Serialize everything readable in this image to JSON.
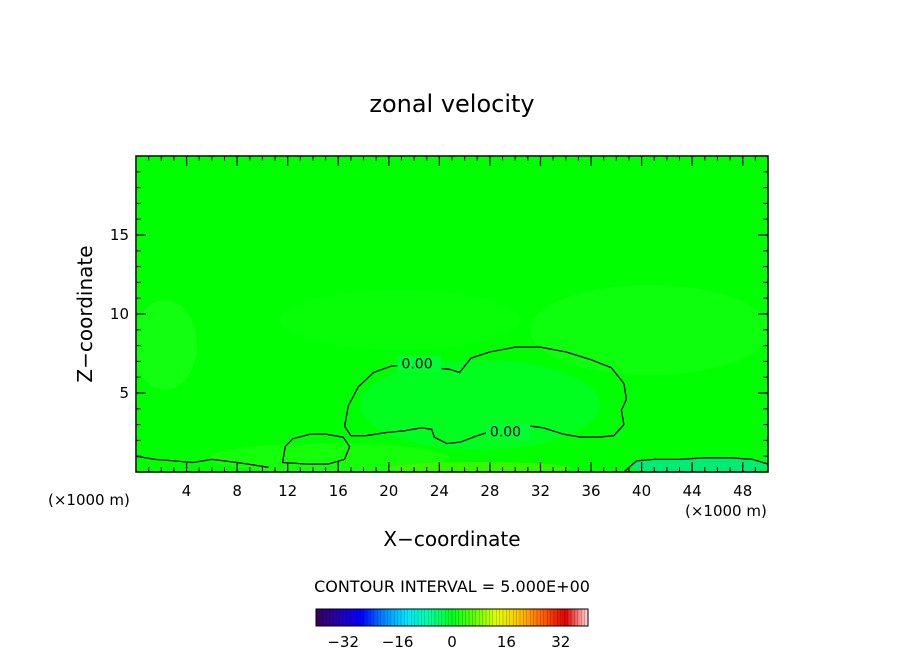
{
  "chart_data": {
    "type": "heatmap",
    "title": "zonal velocity",
    "xlabel": "X−coordinate",
    "ylabel": "Z−coordinate",
    "x_unit": "(×1000 m)",
    "y_unit": "(×1000 m)",
    "xlim": [
      0,
      50
    ],
    "ylim": [
      0,
      20
    ],
    "x_ticks": [
      "4",
      "8",
      "12",
      "16",
      "20",
      "24",
      "28",
      "32",
      "36",
      "40",
      "44",
      "48"
    ],
    "x_tick_values": [
      4,
      8,
      12,
      16,
      20,
      24,
      28,
      32,
      36,
      40,
      44,
      48
    ],
    "y_ticks": [
      "5",
      "10",
      "15"
    ],
    "y_tick_values": [
      5,
      10,
      15
    ],
    "contour_label": "0.00",
    "contour_label_positions": [
      [
        21,
        6.6
      ],
      [
        28,
        2.3
      ]
    ],
    "contour_zero_main": [
      [
        16.5,
        2.9
      ],
      [
        16.8,
        4.2
      ],
      [
        17.6,
        5.4
      ],
      [
        18.8,
        6.3
      ],
      [
        20.2,
        6.7
      ],
      [
        22.0,
        6.8
      ],
      [
        23.5,
        6.6
      ],
      [
        24.8,
        6.5
      ],
      [
        25.6,
        6.3
      ],
      [
        26.5,
        7.2
      ],
      [
        28.0,
        7.6
      ],
      [
        30.0,
        7.9
      ],
      [
        32.0,
        7.9
      ],
      [
        34.0,
        7.6
      ],
      [
        36.0,
        7.1
      ],
      [
        37.6,
        6.6
      ],
      [
        38.6,
        5.6
      ],
      [
        38.8,
        4.6
      ],
      [
        38.4,
        3.9
      ],
      [
        38.6,
        3.0
      ],
      [
        37.8,
        2.3
      ],
      [
        36.5,
        2.2
      ],
      [
        35.2,
        2.2
      ],
      [
        33.8,
        2.4
      ],
      [
        32.2,
        2.8
      ],
      [
        30.4,
        3.0
      ],
      [
        28.6,
        2.7
      ],
      [
        27.0,
        2.3
      ],
      [
        25.7,
        1.9
      ],
      [
        24.6,
        1.8
      ],
      [
        23.6,
        2.2
      ],
      [
        23.4,
        2.7
      ],
      [
        22.6,
        2.8
      ],
      [
        21.2,
        2.6
      ],
      [
        19.8,
        2.5
      ],
      [
        18.2,
        2.3
      ],
      [
        17.0,
        2.3
      ],
      [
        16.5,
        2.9
      ]
    ],
    "contour_zero_left": [
      [
        11.6,
        0.6
      ],
      [
        11.8,
        1.6
      ],
      [
        12.4,
        2.1
      ],
      [
        13.8,
        2.4
      ],
      [
        15.0,
        2.4
      ],
      [
        16.4,
        2.2
      ],
      [
        16.9,
        1.6
      ],
      [
        16.5,
        0.8
      ],
      [
        15.2,
        0.5
      ],
      [
        13.6,
        0.5
      ],
      [
        11.6,
        0.6
      ]
    ],
    "contour_zero_bottom": [
      [
        0,
        1.0
      ],
      [
        1.5,
        0.8
      ],
      [
        3.0,
        0.7
      ],
      [
        4.5,
        0.6
      ],
      [
        6.0,
        0.8
      ],
      [
        8.0,
        0.6
      ],
      [
        10.5,
        0.3
      ]
    ],
    "contour_zero_right": [
      [
        38.6,
        0.0
      ],
      [
        39.6,
        0.7
      ],
      [
        41.0,
        0.8
      ],
      [
        43.0,
        0.8
      ],
      [
        45.0,
        0.9
      ],
      [
        47.0,
        0.9
      ],
      [
        48.8,
        0.8
      ],
      [
        50.0,
        0.5
      ]
    ],
    "colorbar": {
      "title": "CONTOUR INTERVAL = 5.000E+00",
      "min": -40,
      "max": 40,
      "ticks": [
        "−32",
        "−16",
        "0",
        "16",
        "32"
      ],
      "tick_values": [
        -32,
        -16,
        0,
        16,
        32
      ],
      "stops": [
        "#3a0055",
        "#2200b0",
        "#0000ff",
        "#0088ff",
        "#00e8ff",
        "#00ffa0",
        "#00ff20",
        "#60ff00",
        "#e0ff00",
        "#ffc000",
        "#ff6000",
        "#e00000",
        "#ffd8d8"
      ]
    },
    "background_color": "#00ff00"
  }
}
